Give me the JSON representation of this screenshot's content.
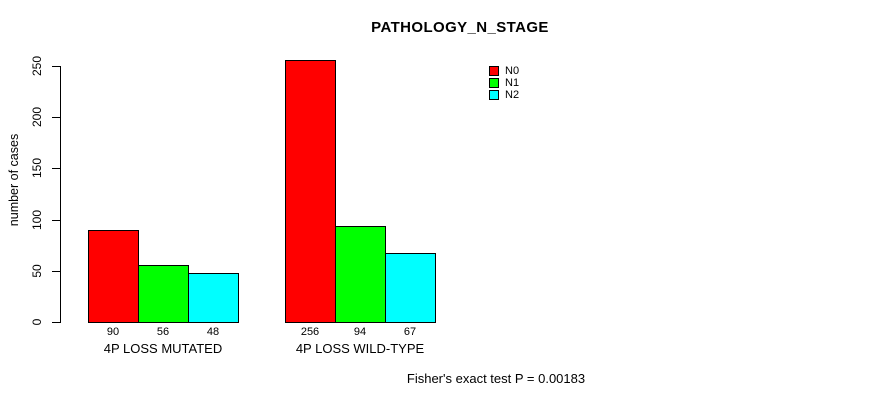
{
  "chart": {
    "title": "PATHOLOGY_N_STAGE",
    "ylabel": "number of cases",
    "annotation": "Fisher's exact test P = 0.00183"
  },
  "chart_data": {
    "type": "bar",
    "title": "PATHOLOGY_N_STAGE",
    "xlabel": "",
    "ylabel": "number of cases",
    "categories": [
      "4P LOSS MUTATED",
      "4P LOSS WILD-TYPE"
    ],
    "series": [
      {
        "name": "N0",
        "color": "#ff0000",
        "values": [
          90,
          256
        ]
      },
      {
        "name": "N1",
        "color": "#00ff00",
        "values": [
          56,
          94
        ]
      },
      {
        "name": "N2",
        "color": "#00ffff",
        "values": [
          48,
          67
        ]
      }
    ],
    "bar_value_labels": [
      [
        90,
        56,
        48
      ],
      [
        256,
        94,
        67
      ]
    ],
    "ylim": [
      0,
      250
    ],
    "yticks": [
      0,
      50,
      100,
      150,
      200,
      250
    ],
    "grid": false,
    "legend_position": "top-right",
    "annotation": "Fisher's exact test P = 0.00183",
    "bar_border_color": "#000000",
    "background_color": "#ffffff"
  }
}
